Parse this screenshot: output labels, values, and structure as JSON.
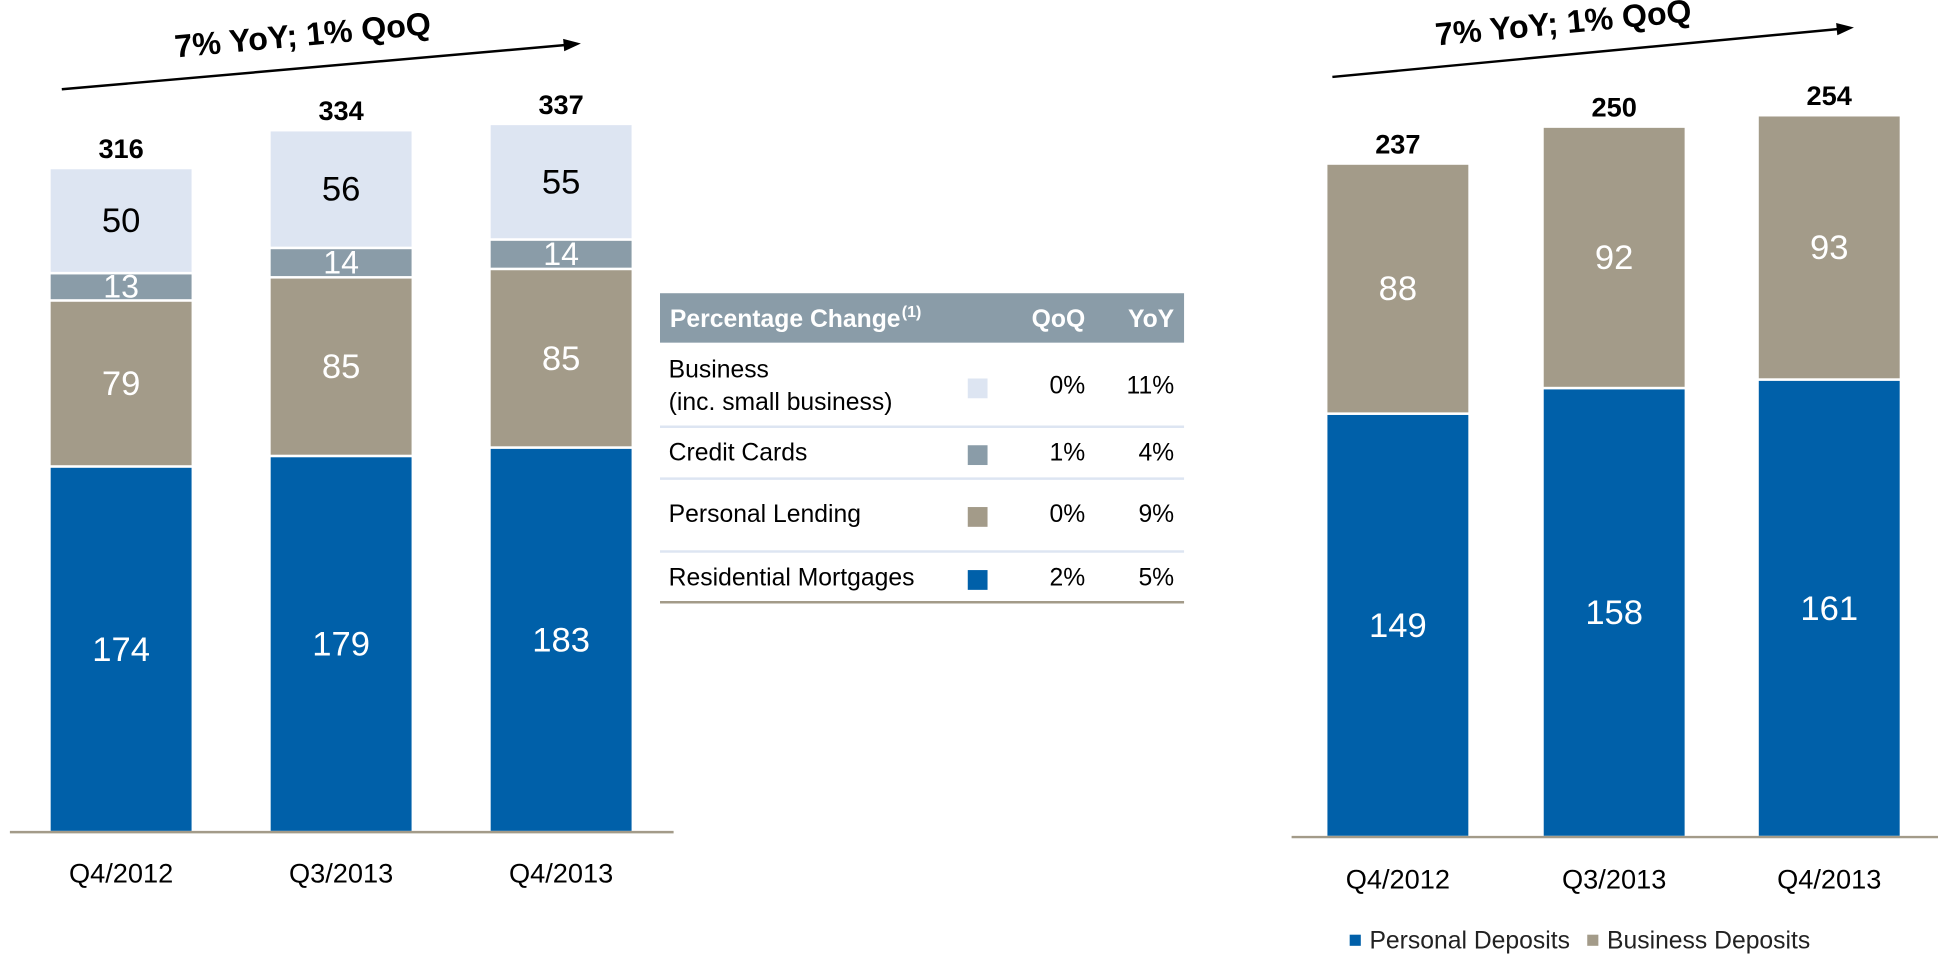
{
  "chart_data": [
    {
      "type": "bar",
      "stacked": true,
      "annotation": "7% YoY; 1% QoQ",
      "categories": [
        "Q4/2012",
        "Q3/2013",
        "Q4/2013"
      ],
      "series": [
        {
          "color": "#0060a9",
          "values": [
            174,
            179,
            183
          ]
        },
        {
          "color": "#a39b89",
          "values": [
            79,
            85,
            85
          ]
        },
        {
          "color": "#8a9ca8",
          "values": [
            13,
            14,
            14
          ]
        },
        {
          "color": "#dde5f2",
          "values": [
            50,
            56,
            55
          ]
        }
      ],
      "totals": [
        316,
        334,
        337
      ]
    },
    {
      "type": "bar",
      "stacked": true,
      "annotation": "7% YoY; 1% QoQ",
      "categories": [
        "Q4/2012",
        "Q3/2013",
        "Q4/2013"
      ],
      "series": [
        {
          "name": "Personal Deposits",
          "color": "#0060a9",
          "values": [
            149,
            158,
            161
          ]
        },
        {
          "name": "Business Deposits",
          "color": "#a39b89",
          "values": [
            88,
            92,
            93
          ]
        }
      ],
      "totals": [
        237,
        250,
        254
      ],
      "legend": "bottom"
    }
  ],
  "table": {
    "header": [
      "Percentage Change",
      "QoQ",
      "YoY"
    ],
    "header_note": "(1)",
    "rows": [
      {
        "label": [
          "Business",
          "(inc. small business)"
        ],
        "qoq": "0%",
        "yoy": "11%"
      },
      {
        "label": [
          "Credit Cards"
        ],
        "qoq": "1%",
        "yoy": "4%"
      },
      {
        "label": [
          "Personal Lending"
        ],
        "qoq": "0%",
        "yoy": "9%"
      },
      {
        "label": [
          "Residential Mortgages"
        ],
        "qoq": "2%",
        "yoy": "5%"
      }
    ]
  }
}
